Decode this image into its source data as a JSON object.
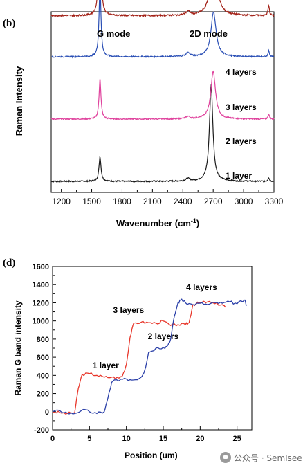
{
  "panels": [
    {
      "chart_data": {
        "type": "line",
        "panel_label": "(b)",
        "xlabel": "Wavenumber (cm",
        "xlabel_sup": "-1",
        "xlabel_tail": ")",
        "ylabel": "Raman Intensity",
        "xlim": [
          1100,
          3300
        ],
        "xticks": [
          1200,
          1500,
          1800,
          2100,
          2400,
          2700,
          3000,
          3300
        ],
        "y_ticks_shown": false,
        "grid": false,
        "annotations": [
          "G mode",
          "2D mode"
        ],
        "series": [
          {
            "name": "1 layer",
            "color": "#1a1a1a",
            "offset": 0,
            "noise": 0.5,
            "peaks": [
              [
                1582,
                20,
                12
              ],
              [
                2450,
                2,
                25
              ],
              [
                2680,
                78,
                20
              ],
              [
                3248,
                3,
                8
              ]
            ]
          },
          {
            "name": "2 layers",
            "color": "#e0449e",
            "offset": 50,
            "noise": 0.5,
            "peaks": [
              [
                1582,
                33,
                11
              ],
              [
                2450,
                2,
                25
              ],
              [
                2700,
                38,
                28
              ],
              [
                3248,
                4,
                8
              ]
            ]
          },
          {
            "name": "3 layers",
            "color": "#2a4fb5",
            "offset": 100,
            "noise": 0.5,
            "peaks": [
              [
                1582,
                60,
                11
              ],
              [
                2450,
                3,
                25
              ],
              [
                2703,
                36,
                30
              ],
              [
                3248,
                5,
                8
              ]
            ]
          },
          {
            "name": "4 layers",
            "color": "#a22016",
            "offset": 133,
            "noise": 0.6,
            "peaks": [
              [
                1580,
                102,
                11
              ],
              [
                2450,
                3,
                25
              ],
              [
                2705,
                57,
                32
              ],
              [
                3248,
                8,
                8
              ]
            ]
          }
        ]
      }
    },
    {
      "chart_data": {
        "type": "line",
        "panel_label": "(d)",
        "xlabel": "Position (um)",
        "ylabel": "Raman G band intensity",
        "xlim": [
          0,
          27
        ],
        "ylim": [
          -200,
          1600
        ],
        "xticks": [
          0,
          5,
          10,
          15,
          20,
          25
        ],
        "yticks": [
          -200,
          0,
          200,
          400,
          600,
          800,
          1000,
          1200,
          1400,
          1600
        ],
        "grid": false,
        "labels": [
          {
            "text": "1 layer",
            "x": 7.2,
            "y": 480
          },
          {
            "text": "3 layers",
            "x": 10.3,
            "y": 1090
          },
          {
            "text": "2 layers",
            "x": 15.0,
            "y": 800
          },
          {
            "text": "4 layers",
            "x": 20.2,
            "y": 1340
          }
        ],
        "series": [
          {
            "color": "#e8362a",
            "x": [
              0,
              1,
              2,
              3,
              3.5,
              4,
              5,
              6,
              7,
              8,
              9,
              9.5,
              10,
              10.5,
              11,
              12,
              13,
              14,
              15,
              16,
              17,
              18,
              18.5,
              19,
              19.5,
              20,
              21,
              22,
              23,
              23.5
            ],
            "y": [
              0,
              -10,
              -20,
              -10,
              260,
              410,
              420,
              400,
              380,
              380,
              370,
              400,
              520,
              820,
              975,
              985,
              980,
              975,
              1000,
              950,
              960,
              960,
              980,
              1180,
              1190,
              1200,
              1210,
              1190,
              1180,
              1150
            ]
          },
          {
            "color": "#2a3fa8",
            "x": [
              0,
              1,
              2,
              3,
              4,
              5,
              6,
              7,
              7.5,
              8,
              8.5,
              9,
              10,
              11,
              12,
              12.5,
              13,
              14,
              15,
              15.5,
              16,
              16.5,
              17,
              17.5,
              18,
              19,
              20,
              21,
              22,
              23,
              24,
              25,
              26,
              26.3
            ],
            "y": [
              0,
              10,
              -15,
              -20,
              20,
              0,
              -20,
              0,
              150,
              320,
              350,
              340,
              360,
              350,
              380,
              460,
              650,
              700,
              710,
              720,
              800,
              1050,
              1200,
              1240,
              1200,
              1180,
              1195,
              1180,
              1200,
              1195,
              1210,
              1190,
              1230,
              1170
            ]
          }
        ]
      }
    }
  ],
  "watermark": "公众号 · SemIsee"
}
